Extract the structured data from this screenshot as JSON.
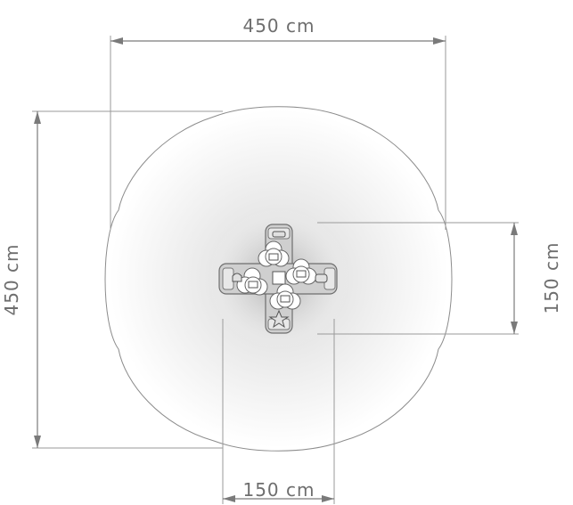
{
  "dimensions": {
    "top_width": "450 cm",
    "left_height": "450 cm",
    "right_height": "150 cm",
    "bottom_width": "150 cm"
  },
  "colors": {
    "dimension": "#7a7a7a",
    "zone_fill_outer": "#ffffff",
    "zone_fill_inner": "#d9d9d9",
    "zone_edge": "#8c8c8c",
    "equipment": "#d2d2d2"
  },
  "icons": [
    "rocking-flower-seat-icon",
    "star-icon",
    "bell-icon",
    "car-icon"
  ]
}
